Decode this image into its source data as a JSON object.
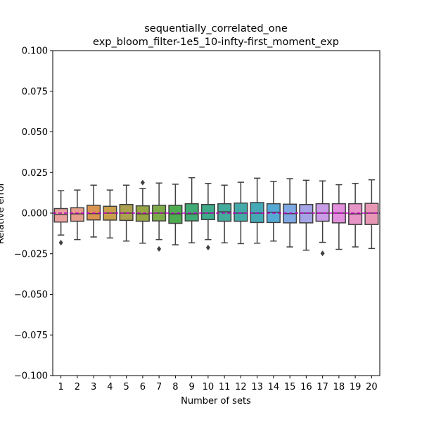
{
  "chart_data": {
    "type": "box",
    "title_lines": [
      "sequentially_correlated_one",
      "exp_bloom_filter-1e5_10-infty-first_moment_exp"
    ],
    "xlabel": "Number of sets",
    "ylabel": "Relative error",
    "ylim": [
      -0.1,
      0.1
    ],
    "yticks": [
      -0.1,
      -0.075,
      -0.05,
      -0.025,
      0.0,
      0.025,
      0.05,
      0.075,
      0.1
    ],
    "ytick_labels": [
      "−0.100",
      "−0.075",
      "−0.050",
      "−0.025",
      "0.000",
      "0.025",
      "0.050",
      "0.075",
      "0.100"
    ],
    "grid": false,
    "reference_line": {
      "y": 0.0,
      "color": "#bf00bf"
    },
    "categories": [
      "1",
      "2",
      "3",
      "4",
      "5",
      "6",
      "7",
      "8",
      "9",
      "10",
      "11",
      "12",
      "13",
      "14",
      "15",
      "16",
      "17",
      "18",
      "19",
      "20"
    ],
    "boxes": [
      {
        "label": "1",
        "whisker_low": -0.0135,
        "q1": -0.0055,
        "median": -0.001,
        "q3": 0.0028,
        "whisker_high": 0.0138,
        "outliers": [
          -0.0182
        ],
        "color": "#e8a19d"
      },
      {
        "label": "2",
        "whisker_low": -0.0163,
        "q1": -0.005,
        "median": -0.0005,
        "q3": 0.0033,
        "whisker_high": 0.0142,
        "outliers": [],
        "color": "#e59e8c"
      },
      {
        "label": "3",
        "whisker_low": -0.0147,
        "q1": -0.0042,
        "median": -0.0003,
        "q3": 0.0048,
        "whisker_high": 0.0172,
        "outliers": [],
        "color": "#da9451"
      },
      {
        "label": "4",
        "whisker_low": -0.0153,
        "q1": -0.0043,
        "median": 0.0,
        "q3": 0.0042,
        "whisker_high": 0.0142,
        "outliers": [],
        "color": "#c89f4a"
      },
      {
        "label": "5",
        "whisker_low": -0.0172,
        "q1": -0.0045,
        "median": 0.0,
        "q3": 0.0053,
        "whisker_high": 0.0172,
        "outliers": [],
        "color": "#aca14e"
      },
      {
        "label": "6",
        "whisker_low": -0.0185,
        "q1": -0.005,
        "median": -0.0005,
        "q3": 0.0045,
        "whisker_high": 0.0152,
        "outliers": [
          0.0188
        ],
        "color": "#97a545"
      },
      {
        "label": "7",
        "whisker_low": -0.0163,
        "q1": -0.0048,
        "median": 0.0,
        "q3": 0.0048,
        "whisker_high": 0.0185,
        "outliers": [
          -0.022
        ],
        "color": "#7dab4a"
      },
      {
        "label": "8",
        "whisker_low": -0.0195,
        "q1": -0.0063,
        "median": -0.0005,
        "q3": 0.0048,
        "whisker_high": 0.0178,
        "outliers": [],
        "color": "#4dac4f"
      },
      {
        "label": "9",
        "whisker_low": -0.0183,
        "q1": -0.0048,
        "median": -0.0005,
        "q3": 0.0058,
        "whisker_high": 0.0218,
        "outliers": [],
        "color": "#40ab74"
      },
      {
        "label": "10",
        "whisker_low": -0.0163,
        "q1": -0.004,
        "median": 0.0,
        "q3": 0.0053,
        "whisker_high": 0.0183,
        "outliers": [
          -0.0212
        ],
        "color": "#3fab8b"
      },
      {
        "label": "11",
        "whisker_low": -0.0183,
        "q1": -0.005,
        "median": 0.0008,
        "q3": 0.0058,
        "whisker_high": 0.0172,
        "outliers": [],
        "color": "#43ab9c"
      },
      {
        "label": "12",
        "whisker_low": -0.0188,
        "q1": -0.005,
        "median": 0.0,
        "q3": 0.0062,
        "whisker_high": 0.019,
        "outliers": [],
        "color": "#44aaa8"
      },
      {
        "label": "13",
        "whisker_low": -0.0185,
        "q1": -0.0058,
        "median": 0.0,
        "q3": 0.0065,
        "whisker_high": 0.0215,
        "outliers": [],
        "color": "#45a8b5"
      },
      {
        "label": "14",
        "whisker_low": -0.0172,
        "q1": -0.0058,
        "median": 0.0005,
        "q3": 0.0058,
        "whisker_high": 0.0195,
        "outliers": [],
        "color": "#55a9d6"
      },
      {
        "label": "15",
        "whisker_low": -0.0208,
        "q1": -0.006,
        "median": -0.0003,
        "q3": 0.0055,
        "whisker_high": 0.0212,
        "outliers": [],
        "color": "#7da8e2"
      },
      {
        "label": "16",
        "whisker_low": -0.0228,
        "q1": -0.006,
        "median": 0.0,
        "q3": 0.0053,
        "whisker_high": 0.0202,
        "outliers": [],
        "color": "#a4a4e6"
      },
      {
        "label": "17",
        "whisker_low": -0.018,
        "q1": -0.005,
        "median": 0.0,
        "q3": 0.0058,
        "whisker_high": 0.0198,
        "outliers": [
          -0.0248
        ],
        "color": "#c89ce6"
      },
      {
        "label": "18",
        "whisker_low": -0.0223,
        "q1": -0.006,
        "median": 0.0,
        "q3": 0.0058,
        "whisker_high": 0.0175,
        "outliers": [],
        "color": "#e28fdd"
      },
      {
        "label": "19",
        "whisker_low": -0.0208,
        "q1": -0.007,
        "median": -0.0005,
        "q3": 0.0058,
        "whisker_high": 0.0183,
        "outliers": [],
        "color": "#e794c6"
      },
      {
        "label": "20",
        "whisker_low": -0.0218,
        "q1": -0.007,
        "median": 0.0,
        "q3": 0.006,
        "whisker_high": 0.0205,
        "outliers": [],
        "color": "#e797b4"
      }
    ]
  }
}
